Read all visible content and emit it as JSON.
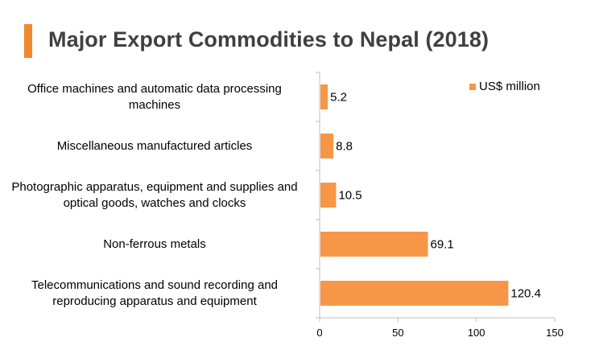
{
  "title": "Major Export Commodities to Nepal (2018)",
  "colors": {
    "accent": "#F08A2E",
    "bar": "#F79646",
    "axis": "#BFBFBF"
  },
  "chart_data": {
    "type": "bar",
    "orientation": "horizontal",
    "title": "Major Export Commodities to Nepal (2018)",
    "categories": [
      "Office machines and automatic data processing machines",
      "Miscellaneous manufactured articles",
      "Photographic apparatus, equipment and supplies and optical goods, watches and clocks",
      "Non-ferrous metals",
      "Telecommunications and sound recording and reproducing apparatus and equipment"
    ],
    "series": [
      {
        "name": "US$ million",
        "values": [
          5.2,
          8.8,
          10.5,
          69.1,
          120.4
        ]
      }
    ],
    "data_labels": [
      "5.2",
      "8.8",
      "10.5",
      "69.1",
      "120.4"
    ],
    "xlim": [
      0,
      150
    ],
    "x_ticks": [
      "0",
      "50",
      "100",
      "150"
    ],
    "legend": "top-right",
    "grid": false
  }
}
